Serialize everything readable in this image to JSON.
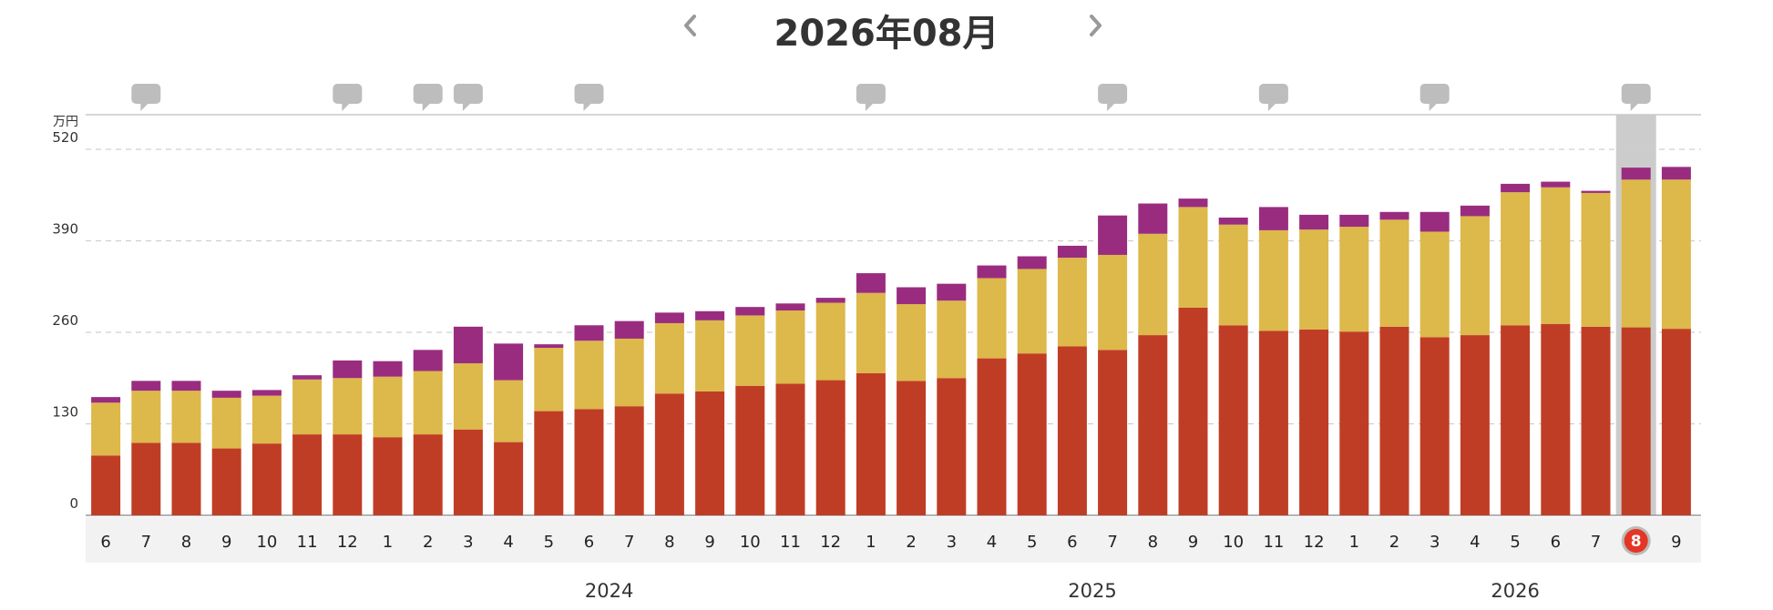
{
  "header": {
    "title": "2026年08月",
    "prev_icon": "chevron-left-icon",
    "next_icon": "chevron-right-icon"
  },
  "colors": {
    "series_bottom": "#c03d25",
    "series_middle": "#ddb84a",
    "series_top": "#9a2c80",
    "highlight": "#cccccc",
    "selected_month_badge": "#e53524",
    "axis_band": "#f2f2f2",
    "comment_icon": "#bdbdbd"
  },
  "chart_data": {
    "type": "bar",
    "stacked": true,
    "yunit": "万円",
    "ylim": [
      0,
      520
    ],
    "yticks": [
      0,
      130,
      260,
      390,
      520
    ],
    "grid": true,
    "x": [
      "6",
      "7",
      "8",
      "9",
      "10",
      "11",
      "12",
      "1",
      "2",
      "3",
      "4",
      "5",
      "6",
      "7",
      "8",
      "9",
      "10",
      "11",
      "12",
      "1",
      "2",
      "3",
      "4",
      "5",
      "6",
      "7",
      "8",
      "9",
      "10",
      "11",
      "12",
      "1",
      "2",
      "3",
      "4",
      "5",
      "6",
      "7",
      "8",
      "9"
    ],
    "year_labels": [
      {
        "label": "2024",
        "start": 7,
        "end": 18
      },
      {
        "label": "2025",
        "start": 19,
        "end": 30
      },
      {
        "label": "2026",
        "start": 31,
        "end": 39
      }
    ],
    "selected_index": 38,
    "comment_indices": [
      1,
      6,
      8,
      9,
      12,
      19,
      25,
      29,
      33,
      38
    ],
    "series": [
      {
        "color_key": "series_bottom",
        "values": [
          85,
          103,
          103,
          95,
          102,
          115,
          115,
          111,
          115,
          122,
          104,
          148,
          151,
          155,
          173,
          176,
          184,
          187,
          192,
          202,
          191,
          195,
          223,
          230,
          240,
          235,
          256,
          295,
          270,
          262,
          264,
          261,
          268,
          253,
          256,
          270,
          272,
          268,
          267,
          265
        ]
      },
      {
        "color_key": "series_middle",
        "values": [
          75,
          74,
          74,
          72,
          68,
          78,
          80,
          86,
          90,
          94,
          88,
          90,
          97,
          96,
          100,
          101,
          100,
          104,
          110,
          114,
          109,
          110,
          114,
          120,
          126,
          135,
          144,
          143,
          143,
          143,
          142,
          149,
          152,
          150,
          169,
          189,
          194,
          190,
          210,
          212
        ]
      },
      {
        "color_key": "series_top",
        "values": [
          8,
          14,
          14,
          10,
          8,
          6,
          25,
          22,
          30,
          52,
          52,
          5,
          22,
          25,
          15,
          13,
          12,
          10,
          7,
          28,
          24,
          24,
          18,
          18,
          17,
          56,
          43,
          12,
          10,
          33,
          21,
          17,
          11,
          28,
          15,
          12,
          8,
          3,
          17,
          18
        ]
      }
    ]
  }
}
